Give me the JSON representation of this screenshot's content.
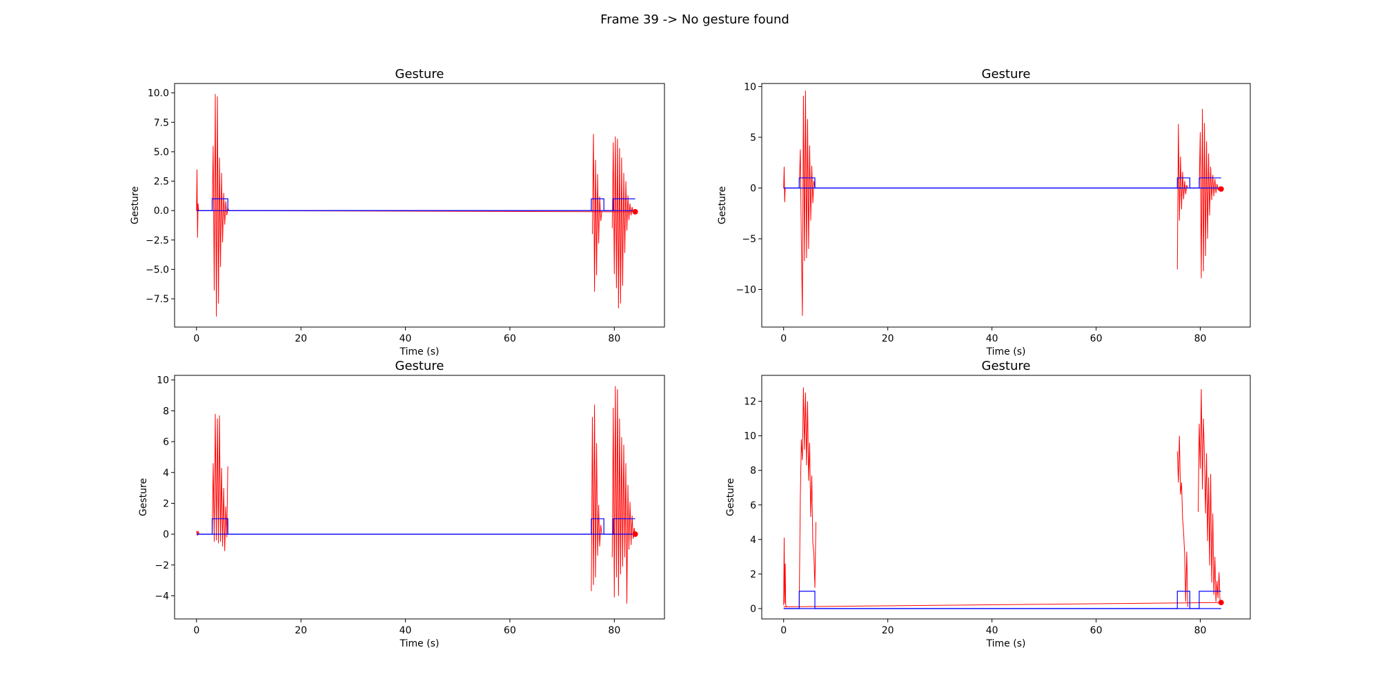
{
  "figure": {
    "title": "Frame 39 -> No gesture found"
  },
  "colors": {
    "signal": "#ff0000",
    "gesture": "#0000ff",
    "marker": "#ff0000"
  },
  "chart_data": [
    {
      "type": "line",
      "title": "Gesture",
      "xlabel": "Time (s)",
      "ylabel": "Gesture",
      "xlim": [
        -4.2,
        89.6
      ],
      "ylim": [
        -9.9,
        10.8
      ],
      "xticks": [
        0,
        20,
        40,
        60,
        80
      ],
      "xtick_labels": [
        "0",
        "20",
        "40",
        "60",
        "80"
      ],
      "yticks": [
        -7.5,
        -5.0,
        -2.5,
        0.0,
        2.5,
        5.0,
        7.5,
        10.0
      ],
      "ytick_labels": [
        "−7.5",
        "−5.0",
        "−2.5",
        "0.0",
        "2.5",
        "5.0",
        "7.5",
        "10.0"
      ],
      "grid": false,
      "series": [
        {
          "kind": "signal",
          "bursts": [
            {
              "x": [
                0.0,
                0.1,
                0.2,
                0.3,
                0.4
              ],
              "y": [
                0.0,
                3.5,
                -2.3,
                0.6,
                0.0
              ]
            },
            {
              "x": [
                3.0,
                3.2,
                3.4,
                3.6,
                3.8,
                4.0,
                4.2,
                4.4,
                4.6,
                4.8,
                5.0,
                5.2,
                5.4,
                5.6,
                5.8,
                6.0,
                6.2
              ],
              "y": [
                0.0,
                5.5,
                -6.8,
                9.9,
                -9.0,
                9.7,
                -7.9,
                4.5,
                -4.8,
                3.2,
                -2.7,
                1.5,
                -1.2,
                0.8,
                -0.4,
                0.2,
                0.0
              ]
            },
            {
              "x": [
                75.8,
                76.0,
                76.2,
                76.4,
                76.6,
                76.8,
                77.0,
                77.2,
                77.4,
                77.6
              ],
              "y": [
                -2.0,
                6.5,
                -6.9,
                4.3,
                -5.5,
                3.1,
                -2.8,
                1.2,
                -0.9,
                0.0
              ]
            },
            {
              "x": [
                79.6,
                79.8,
                80.0,
                80.2,
                80.4,
                80.6,
                80.8,
                81.0,
                81.2,
                81.4,
                81.6,
                81.8,
                82.0,
                82.2,
                82.4,
                82.6,
                82.8,
                83.0,
                83.2,
                83.4,
                83.6,
                83.8,
                84.0
              ],
              "y": [
                -1.5,
                5.8,
                -5.4,
                6.3,
                -6.6,
                6.1,
                -8.3,
                5.3,
                -7.9,
                4.5,
                -6.4,
                3.2,
                -3.6,
                2.5,
                -1.7,
                1.3,
                -0.8,
                0.6,
                -0.4,
                0.3,
                -0.2,
                0.0,
                -0.1
              ]
            }
          ]
        },
        {
          "kind": "drift",
          "x": [
            0.0,
            84.0
          ],
          "y": [
            0.0,
            -0.1
          ]
        },
        {
          "kind": "gesture",
          "x": [
            0.0,
            3.0,
            3.0,
            6.0,
            6.0,
            75.6,
            75.6,
            78.0,
            78.0,
            79.8,
            79.8,
            84.0
          ],
          "y": [
            0.0,
            0.0,
            1.0,
            1.0,
            0.0,
            0.0,
            1.0,
            1.0,
            0.0,
            0.0,
            1.0,
            1.0
          ]
        },
        {
          "kind": "gesture",
          "x": [
            84.0,
            0.0
          ],
          "y": [
            0.0,
            0.0
          ]
        }
      ],
      "marker": {
        "x": 84.0,
        "y": -0.1
      }
    },
    {
      "type": "line",
      "title": "Gesture",
      "xlabel": "Time (s)",
      "ylabel": "Gesture",
      "xlim": [
        -4.2,
        89.6
      ],
      "ylim": [
        -13.7,
        10.3
      ],
      "xticks": [
        0,
        20,
        40,
        60,
        80
      ],
      "xtick_labels": [
        "0",
        "20",
        "40",
        "60",
        "80"
      ],
      "yticks": [
        -10,
        -5,
        0,
        5,
        10
      ],
      "ytick_labels": [
        "−10",
        "−5",
        "0",
        "5",
        "10"
      ],
      "grid": false,
      "series": [
        {
          "kind": "signal",
          "bursts": [
            {
              "x": [
                0.0,
                0.1,
                0.2,
                0.3
              ],
              "y": [
                0.0,
                2.1,
                -1.4,
                0.0
              ]
            },
            {
              "x": [
                3.0,
                3.2,
                3.4,
                3.6,
                3.8,
                4.0,
                4.2,
                4.4,
                4.6,
                4.8,
                5.0,
                5.2,
                5.4,
                5.6,
                5.8,
                6.0
              ],
              "y": [
                0.0,
                3.8,
                -5.2,
                -12.6,
                9.1,
                -7.2,
                9.6,
                -6.9,
                6.8,
                -6.0,
                4.2,
                -3.2,
                2.2,
                -1.5,
                0.7,
                0.0
              ]
            },
            {
              "x": [
                75.6,
                75.8,
                76.0,
                76.2,
                76.4,
                76.6,
                76.8,
                77.0,
                77.2,
                77.4,
                77.6
              ],
              "y": [
                -8.0,
                6.3,
                -3.2,
                3.1,
                -2.1,
                1.6,
                -1.1,
                0.7,
                -0.6,
                0.3,
                0.0
              ]
            },
            {
              "x": [
                79.8,
                80.0,
                80.2,
                80.4,
                80.6,
                80.8,
                81.0,
                81.2,
                81.4,
                81.6,
                81.8,
                82.0,
                82.2,
                82.4,
                82.6,
                82.8,
                83.0,
                83.2,
                83.4,
                83.6,
                83.8,
                84.0
              ],
              "y": [
                0.0,
                5.5,
                -8.9,
                7.8,
                -8.2,
                6.4,
                -6.7,
                4.6,
                -5.0,
                3.4,
                -2.7,
                2.1,
                -1.2,
                1.3,
                -0.8,
                0.9,
                -0.5,
                0.4,
                -0.2,
                0.1,
                0.0,
                0.0
              ]
            }
          ]
        },
        {
          "kind": "drift",
          "x": [
            0.0,
            84.0
          ],
          "y": [
            0.0,
            0.0
          ]
        },
        {
          "kind": "gesture",
          "x": [
            0.0,
            3.0,
            3.0,
            6.0,
            6.0,
            75.6,
            75.6,
            78.0,
            78.0,
            79.8,
            79.8,
            84.0
          ],
          "y": [
            0.0,
            0.0,
            1.0,
            1.0,
            0.0,
            0.0,
            1.0,
            1.0,
            0.0,
            0.0,
            1.0,
            1.0
          ]
        },
        {
          "kind": "gesture",
          "x": [
            84.0,
            0.0
          ],
          "y": [
            0.0,
            0.0
          ]
        }
      ],
      "marker": {
        "x": 84.0,
        "y": -0.1
      }
    },
    {
      "type": "line",
      "title": "Gesture",
      "xlabel": "Time (s)",
      "ylabel": "Gesture",
      "xlim": [
        -4.2,
        89.6
      ],
      "ylim": [
        -5.5,
        10.3
      ],
      "xticks": [
        0,
        20,
        40,
        60,
        80
      ],
      "xtick_labels": [
        "0",
        "20",
        "40",
        "60",
        "80"
      ],
      "yticks": [
        -4,
        -2,
        0,
        2,
        4,
        6,
        8,
        10
      ],
      "ytick_labels": [
        "−4",
        "−2",
        "0",
        "2",
        "4",
        "6",
        "8",
        "10"
      ],
      "grid": false,
      "series": [
        {
          "kind": "signal",
          "bursts": [
            {
              "x": [
                0.0,
                0.1,
                0.2,
                0.3,
                0.4,
                0.5
              ],
              "y": [
                0.1,
                0.2,
                -0.1,
                0.2,
                0.1,
                0.0
              ]
            },
            {
              "x": [
                3.0,
                3.2,
                3.4,
                3.6,
                3.8,
                4.0,
                4.2,
                4.4,
                4.6,
                4.8,
                5.0,
                5.2,
                5.4,
                5.6,
                5.8,
                6.0
              ],
              "y": [
                0.0,
                4.6,
                -0.5,
                7.8,
                -0.4,
                7.5,
                -0.6,
                7.7,
                -0.5,
                4.3,
                -0.8,
                3.0,
                -1.1,
                1.8,
                -0.2,
                4.4
              ]
            },
            {
              "x": [
                75.6,
                75.8,
                76.0,
                76.2,
                76.4,
                76.6,
                76.8,
                77.0,
                77.2,
                77.4,
                77.6
              ],
              "y": [
                -3.7,
                7.6,
                -3.3,
                8.4,
                -2.8,
                5.9,
                -1.4,
                1.9,
                -0.8,
                0.6,
                0.0
              ]
            },
            {
              "x": [
                79.6,
                79.8,
                80.0,
                80.2,
                80.4,
                80.6,
                80.8,
                81.0,
                81.2,
                81.4,
                81.6,
                81.8,
                82.0,
                82.2,
                82.4,
                82.6,
                82.8,
                83.0,
                83.2,
                83.4,
                83.6,
                83.8,
                84.0
              ],
              "y": [
                -1.5,
                8.2,
                -4.1,
                9.6,
                -2.8,
                9.4,
                -4.0,
                7.5,
                -2.6,
                6.3,
                -2.1,
                5.8,
                -1.5,
                4.6,
                -4.5,
                3.2,
                -1.0,
                2.1,
                -0.7,
                1.2,
                -0.3,
                0.4,
                0.0
              ]
            }
          ]
        },
        {
          "kind": "drift",
          "x": [
            0.0,
            84.0
          ],
          "y": [
            0.0,
            0.0
          ]
        },
        {
          "kind": "gesture",
          "x": [
            0.0,
            3.0,
            3.0,
            6.0,
            6.0,
            75.6,
            75.6,
            78.0,
            78.0,
            79.8,
            79.8,
            84.0
          ],
          "y": [
            0.0,
            0.0,
            1.0,
            1.0,
            0.0,
            0.0,
            1.0,
            1.0,
            0.0,
            0.0,
            1.0,
            1.0
          ]
        },
        {
          "kind": "gesture",
          "x": [
            84.0,
            0.0
          ],
          "y": [
            0.0,
            0.0
          ]
        }
      ],
      "marker": {
        "x": 84.0,
        "y": 0.0
      }
    },
    {
      "type": "line",
      "title": "Gesture",
      "xlabel": "Time (s)",
      "ylabel": "Gesture",
      "xlim": [
        -4.2,
        89.6
      ],
      "ylim": [
        -0.6,
        13.5
      ],
      "xticks": [
        0,
        20,
        40,
        60,
        80
      ],
      "xtick_labels": [
        "0",
        "20",
        "40",
        "60",
        "80"
      ],
      "yticks": [
        0,
        2,
        4,
        6,
        8,
        10,
        12
      ],
      "ytick_labels": [
        "0",
        "2",
        "4",
        "6",
        "8",
        "10",
        "12"
      ],
      "grid": false,
      "series": [
        {
          "kind": "signal",
          "bursts": [
            {
              "x": [
                0.0,
                0.1,
                0.2,
                0.3,
                0.4,
                0.6
              ],
              "y": [
                0.2,
                4.1,
                0.3,
                2.6,
                0.2,
                0.1
              ]
            },
            {
              "x": [
                3.0,
                3.2,
                3.4,
                3.6,
                3.8,
                4.0,
                4.2,
                4.4,
                4.6,
                4.8,
                5.0,
                5.2,
                5.4,
                5.6,
                5.8,
                6.0,
                6.2
              ],
              "y": [
                0.1,
                6.5,
                9.8,
                8.6,
                12.8,
                9.2,
                12.5,
                8.3,
                12.0,
                7.4,
                9.6,
                5.3,
                7.7,
                3.8,
                3.2,
                1.2,
                5.0
              ]
            },
            {
              "x": [
                75.6,
                75.8,
                76.0,
                76.2,
                76.4,
                76.6,
                76.8,
                77.0,
                77.2,
                77.4,
                77.6
              ],
              "y": [
                9.1,
                7.3,
                10.0,
                6.6,
                7.3,
                5.2,
                4.4,
                3.1,
                0.4,
                3.3,
                0.1
              ]
            },
            {
              "x": [
                79.6,
                79.8,
                80.0,
                80.2,
                80.4,
                80.6,
                80.8,
                81.0,
                81.2,
                81.4,
                81.6,
                81.8,
                82.0,
                82.2,
                82.4,
                82.6,
                82.8,
                83.0,
                83.2,
                83.4,
                83.6,
                83.8,
                84.0
              ],
              "y": [
                5.6,
                10.7,
                8.1,
                12.7,
                6.9,
                11.0,
                8.8,
                5.5,
                9.0,
                3.9,
                7.6,
                2.5,
                7.8,
                1.5,
                5.5,
                0.8,
                3.0,
                0.4,
                1.6,
                0.6,
                2.1,
                0.3,
                0.4
              ]
            }
          ]
        },
        {
          "kind": "drift",
          "x": [
            0.0,
            84.0
          ],
          "y": [
            0.1,
            0.35
          ]
        },
        {
          "kind": "gesture",
          "x": [
            0.0,
            3.0,
            3.0,
            6.0,
            6.0,
            75.6,
            75.6,
            78.0,
            78.0,
            79.8,
            79.8,
            84.0
          ],
          "y": [
            0.0,
            0.0,
            1.0,
            1.0,
            0.0,
            0.0,
            1.0,
            1.0,
            0.0,
            0.0,
            1.0,
            1.0
          ]
        },
        {
          "kind": "gesture",
          "x": [
            84.0,
            0.0
          ],
          "y": [
            0.0,
            0.0
          ]
        }
      ],
      "marker": {
        "x": 84.0,
        "y": 0.35
      }
    }
  ]
}
